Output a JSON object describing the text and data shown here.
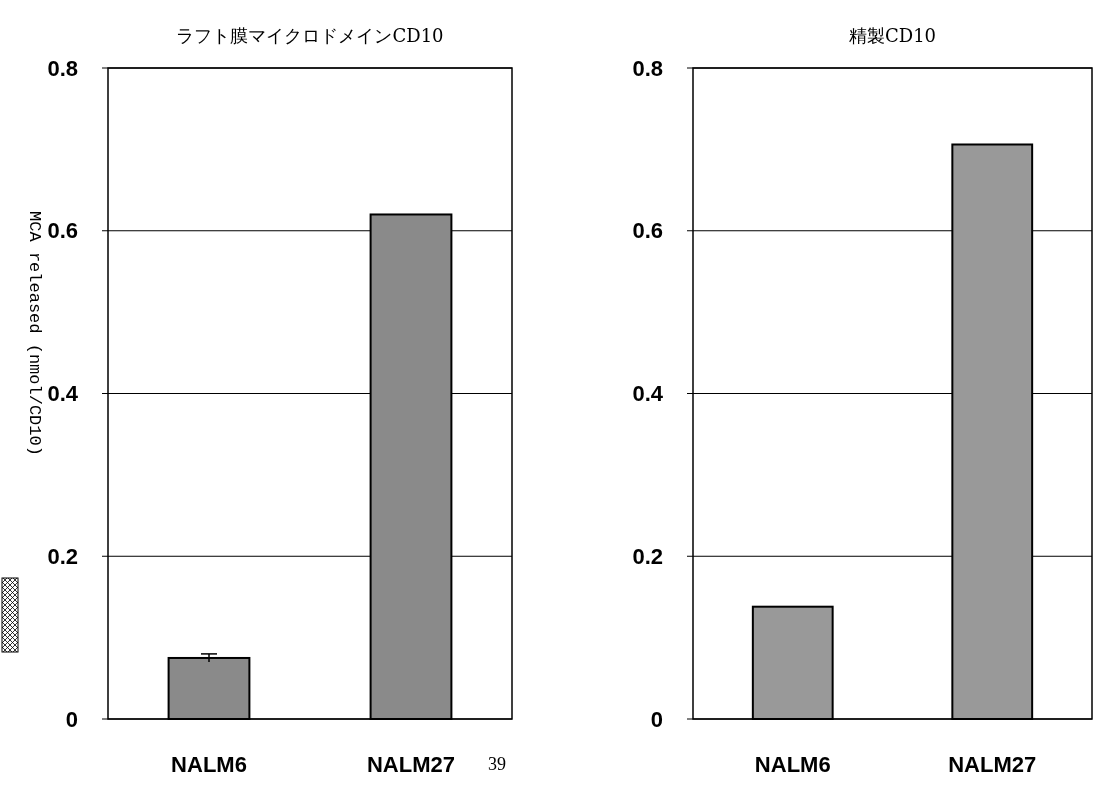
{
  "chart_data": [
    {
      "type": "bar",
      "title": "ラフト膜マイクロドメインCD10",
      "ylabel": "MCA released (nmol/CD10)",
      "categories": [
        "NALM6",
        "NALM27"
      ],
      "values": [
        0.075,
        0.62
      ],
      "errors": [
        0.005,
        null
      ],
      "color": "#8a8a8a",
      "ylim": [
        0,
        0.8
      ],
      "yticks": [
        0,
        0.2,
        0.4,
        0.6,
        0.8
      ],
      "grid": "y",
      "annotations": [
        "39"
      ]
    },
    {
      "type": "bar",
      "title": "精製CD10",
      "categories": [
        "NALM6",
        "NALM27"
      ],
      "values": [
        0.138,
        0.706
      ],
      "color": "#999999",
      "ylim": [
        0,
        0.8
      ],
      "yticks": [
        0,
        0.2,
        0.4,
        0.6,
        0.8
      ],
      "grid": "y"
    }
  ]
}
